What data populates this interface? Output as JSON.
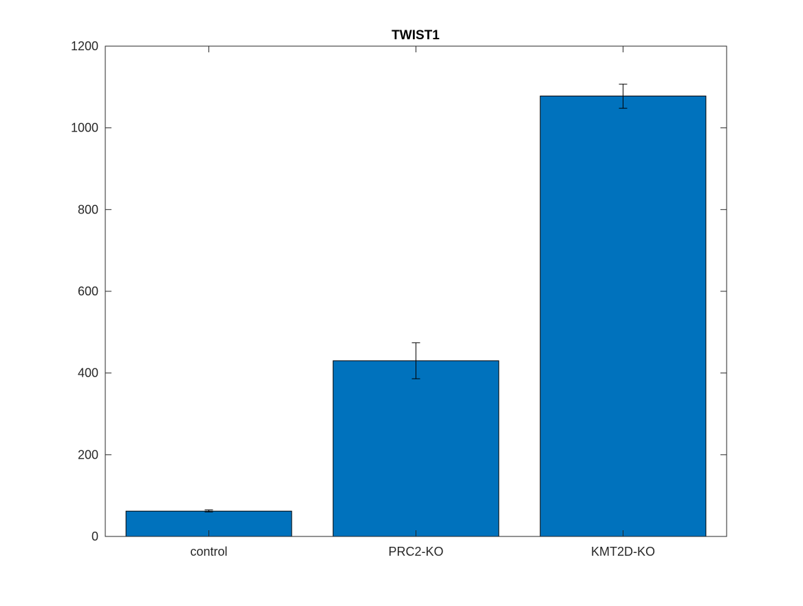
{
  "chart_data": {
    "type": "bar",
    "title": "TWIST1",
    "xlabel": "",
    "ylabel": "",
    "categories": [
      "control",
      "PRC2-KO",
      "KMT2D-KO"
    ],
    "values": [
      62,
      430,
      1078
    ],
    "error_low": [
      60,
      386,
      1048
    ],
    "error_high": [
      65,
      474,
      1107
    ],
    "ylim": [
      0,
      1200
    ],
    "yticks": [
      0,
      200,
      400,
      600,
      800,
      1000,
      1200
    ],
    "ytick_labels": [
      "0",
      "200",
      "400",
      "600",
      "800",
      "1000",
      "1200"
    ],
    "grid": false,
    "legend": false,
    "bar_color": "#0072BD",
    "edge_color": "#000000",
    "axis_color": "#262626"
  }
}
